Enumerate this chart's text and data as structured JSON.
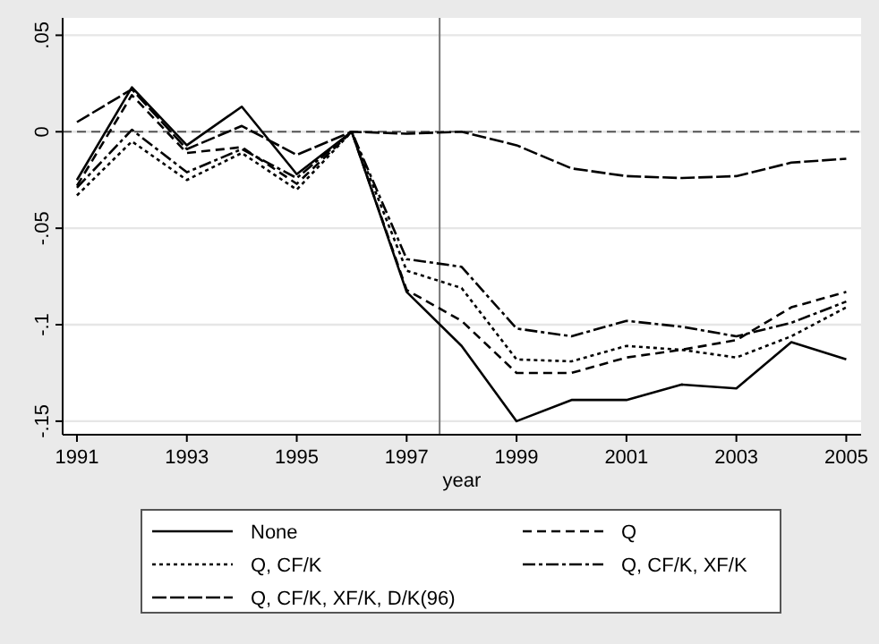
{
  "chart_data": {
    "type": "line",
    "xlabel": "year",
    "x": [
      1991,
      1992,
      1993,
      1994,
      1995,
      1996,
      1997,
      1998,
      1999,
      2000,
      2001,
      2002,
      2003,
      2004,
      2005
    ],
    "xlim": [
      1990.74,
      2005.27
    ],
    "xticks": [
      1991,
      1993,
      1995,
      1997,
      1999,
      2001,
      2003,
      2005
    ],
    "ylim": [
      -0.157,
      0.059
    ],
    "yticks": [
      {
        "value": 0.05,
        "label": ".05"
      },
      0,
      {
        "value": -0.05,
        "label": "-.05"
      },
      {
        "value": -0.1,
        "label": "-.1"
      },
      {
        "value": -0.15,
        "label": "-.15"
      }
    ],
    "grid": "y",
    "legend": "bottom",
    "marker": "none",
    "ref_lines": [
      {
        "axis": "y",
        "value": 0,
        "label": null,
        "color": "#555555",
        "line_style": "dashed"
      },
      {
        "axis": "x",
        "value": 1997.6,
        "label": null,
        "color": "#777777",
        "line_style": "solid"
      }
    ],
    "series": [
      {
        "name": "None",
        "color": "#000000",
        "line_style": "solid",
        "values": [
          -0.025,
          0.023,
          -0.007,
          0.013,
          -0.022,
          0,
          -0.083,
          -0.111,
          -0.15,
          -0.139,
          -0.139,
          -0.131,
          -0.133,
          -0.109,
          -0.118
        ]
      },
      {
        "name": "Q",
        "color": "#000000",
        "line_style": "dashed",
        "values": [
          -0.028,
          0.019,
          -0.011,
          -0.008,
          -0.027,
          0,
          -0.082,
          -0.098,
          -0.125,
          -0.125,
          -0.117,
          -0.113,
          -0.108,
          -0.091,
          -0.083
        ]
      },
      {
        "name": "Q, CF/K",
        "color": "#000000",
        "line_style": "dotted",
        "values": [
          -0.033,
          -0.005,
          -0.025,
          -0.011,
          -0.03,
          0,
          -0.072,
          -0.081,
          -0.118,
          -0.119,
          -0.111,
          -0.113,
          -0.117,
          -0.106,
          -0.091
        ]
      },
      {
        "name": "Q, CF/K, XF/K",
        "color": "#000000",
        "line_style": "dash-dot",
        "values": [
          -0.029,
          0.001,
          -0.021,
          -0.009,
          -0.024,
          0,
          -0.066,
          -0.07,
          -0.102,
          -0.106,
          -0.098,
          -0.101,
          -0.106,
          -0.099,
          -0.088
        ]
      },
      {
        "name": "Q, CF/K, XF/K, D/K(96)",
        "color": "#000000",
        "line_style": "long-dash",
        "values": [
          0.005,
          0.022,
          -0.009,
          0.003,
          -0.012,
          0,
          -0.001,
          0,
          -0.007,
          -0.019,
          -0.023,
          -0.024,
          -0.023,
          -0.016,
          -0.014
        ]
      }
    ]
  }
}
